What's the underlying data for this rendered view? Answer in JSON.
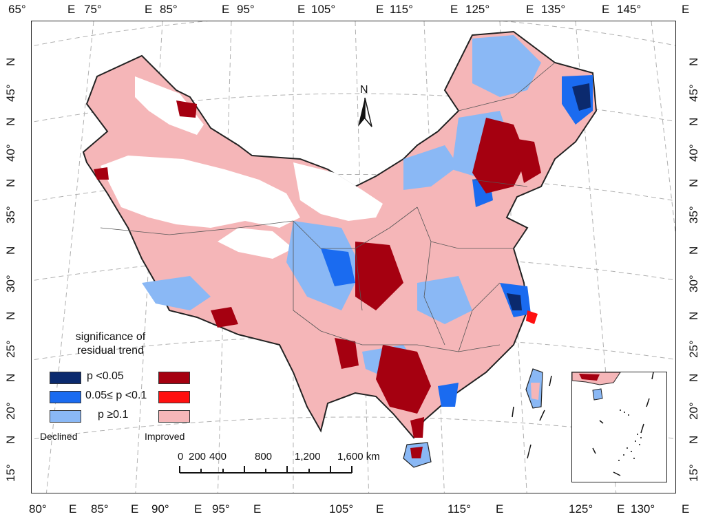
{
  "map": {
    "top_axis": [
      {
        "deg": "65°",
        "dir": "E"
      },
      {
        "deg": "75°",
        "dir": "E"
      },
      {
        "deg": "85°",
        "dir": "E"
      },
      {
        "deg": "95°",
        "dir": "E"
      },
      {
        "deg": "105°",
        "dir": "E"
      },
      {
        "deg": "115°",
        "dir": "E"
      },
      {
        "deg": "125°",
        "dir": "E"
      },
      {
        "deg": "135°",
        "dir": "E"
      },
      {
        "deg": "145°",
        "dir": "E"
      }
    ],
    "bottom_axis": [
      {
        "deg": "80°",
        "dir": "E"
      },
      {
        "deg": "85°",
        "dir": "E"
      },
      {
        "deg": "90°",
        "dir": "E"
      },
      {
        "deg": "95°",
        "dir": "E"
      },
      {
        "deg": "105°",
        "dir": "E"
      },
      {
        "deg": "115°",
        "dir": "E"
      },
      {
        "deg": "125°",
        "dir": "E"
      },
      {
        "deg": "130°",
        "dir": "E"
      }
    ],
    "left_axis": [
      {
        "deg": "45°",
        "dir": "N"
      },
      {
        "deg": "40°",
        "dir": "N"
      },
      {
        "deg": "35°",
        "dir": "N"
      },
      {
        "deg": "30°",
        "dir": "N"
      },
      {
        "deg": "25°",
        "dir": "N"
      },
      {
        "deg": "20°",
        "dir": "N"
      },
      {
        "deg": "15°",
        "dir": "N"
      }
    ],
    "right_axis": [
      {
        "deg": "45°",
        "dir": "N"
      },
      {
        "deg": "40°",
        "dir": "N"
      },
      {
        "deg": "35°",
        "dir": "N"
      },
      {
        "deg": "30°",
        "dir": "N"
      },
      {
        "deg": "25°",
        "dir": "N"
      },
      {
        "deg": "20°",
        "dir": "N"
      },
      {
        "deg": "15°",
        "dir": "N"
      }
    ],
    "north_label": "N"
  },
  "legend": {
    "title_line1": "significance of",
    "title_line2": "residual trend",
    "rows": [
      {
        "label": "p <0.05",
        "declined_color": "#0b2a6e",
        "improved_color": "#a50010"
      },
      {
        "label": "0.05≤ p <0.1",
        "declined_color": "#1a6bf0",
        "improved_color": "#ff1010"
      },
      {
        "label": "p ≥0.1",
        "declined_color": "#8ab8f5",
        "improved_color": "#f5b6b8"
      }
    ],
    "declined_label": "Declined",
    "improved_label": "Improved"
  },
  "scalebar": {
    "labels": [
      "0",
      "200",
      "400",
      "800",
      "1,200",
      "1,600 km"
    ]
  },
  "colors": {
    "declined_strong": "#0b2a6e",
    "declined_mid": "#1a6bf0",
    "declined_weak": "#8ab8f5",
    "improved_strong": "#a50010",
    "improved_mid": "#ff1010",
    "improved_weak": "#f5b6b8",
    "graticule": "#b0b0b0",
    "boundary": "#222222"
  }
}
